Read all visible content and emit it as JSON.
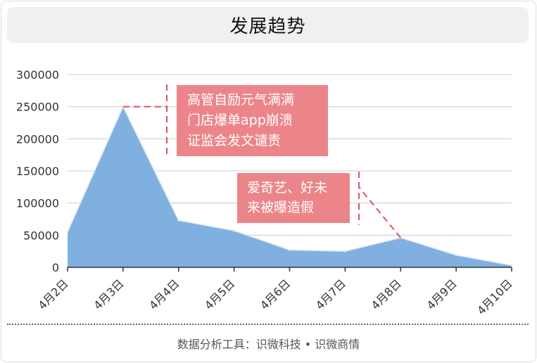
{
  "header": {
    "title": "发展趋势"
  },
  "footer": {
    "text": "数据分析工具：识微科技 • 识微商情"
  },
  "colors": {
    "area": "#7fb0e0",
    "area_line": "#d8e8f6",
    "annotation_bg": "#ec8589",
    "annotation_line": "#e2505e",
    "grid": "#cccccc"
  },
  "chart_data": {
    "type": "area",
    "title": "发展趋势",
    "xlabel": "",
    "ylabel": "",
    "categories": [
      "4月2日",
      "4月3日",
      "4月4日",
      "4月5日",
      "4月6日",
      "4月7日",
      "4月8日",
      "4月9日",
      "4月10日"
    ],
    "series": [
      {
        "values": [
          55000,
          250000,
          73000,
          57000,
          27000,
          25000,
          46000,
          19000,
          3000
        ]
      }
    ],
    "ylim": [
      0,
      300000
    ],
    "yticks": [
      0,
      50000,
      100000,
      150000,
      200000,
      250000,
      300000
    ],
    "grid": true,
    "annotations": [
      {
        "category": "4月3日",
        "lines": [
          "高管自励元气满满",
          "门店爆单app崩溃",
          "证监会发文谴责"
        ]
      },
      {
        "category": "4月8日",
        "lines": [
          "爱奇艺、好未",
          "来被曝造假"
        ]
      }
    ]
  }
}
